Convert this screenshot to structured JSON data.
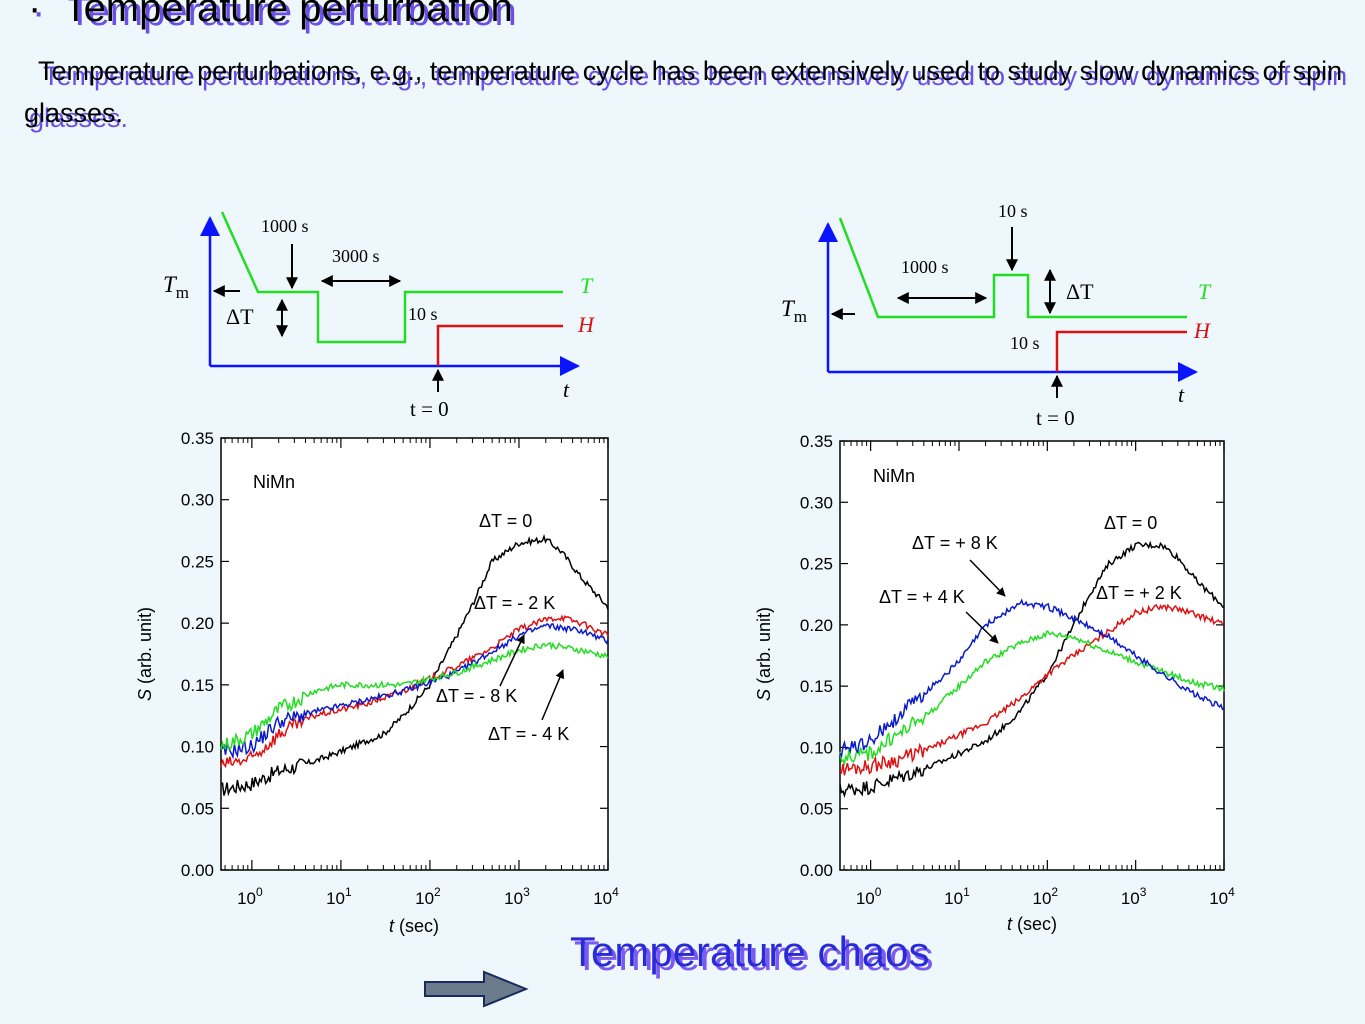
{
  "slide": {
    "title_bullet": "·",
    "title": "Temperature perturbation",
    "intro": "Temperature perturbations, e.g., temperature cycle has been extensively used to study slow dynamics of spin glasses.",
    "conclusion": "Temperature chaos",
    "colors": {
      "green": "#22dd22",
      "red": "#dd1111",
      "blue": "#0a1acc",
      "black": "#000000",
      "axis_blue": "#0a14ff",
      "title_shadow": "#6a4ee6",
      "conclusion": "#2a2ad8"
    }
  },
  "protocols": [
    {
      "labels": {
        "tm": "T",
        "tm_sub": "m",
        "dT": "ΔT",
        "wait1": "1000 s",
        "wait2": "3000 s",
        "field_on": "10 s",
        "t_legend": "T",
        "h_legend": "H",
        "t_axis": "t",
        "t0": "t = 0"
      }
    },
    {
      "labels": {
        "tm": "T",
        "tm_sub": "m",
        "dT": "ΔT",
        "wait1": "1000 s",
        "pulse": "10 s",
        "field_on": "10 s",
        "t_legend": "T",
        "h_legend": "H",
        "t_axis": "t",
        "t0": "t = 0"
      }
    }
  ],
  "chart_data": [
    {
      "type": "line",
      "sample_label": "NiMn",
      "xlabel_italic": "t",
      "xlabel_rest": " (sec)",
      "ylabel_italic": "S",
      "ylabel_rest": " (arb. unit)",
      "x_scale": "log",
      "xlim": [
        0.45,
        10000
      ],
      "ylim": [
        0,
        0.35
      ],
      "xticks": [
        1,
        10,
        100,
        1000,
        10000
      ],
      "xtick_exponents": [
        "0",
        "1",
        "2",
        "3",
        "4"
      ],
      "yticks": [
        "0.00",
        "0.05",
        "0.10",
        "0.15",
        "0.20",
        "0.25",
        "0.30",
        "0.35"
      ],
      "series": [
        {
          "color": "#000000",
          "label": "ΔT = 0",
          "x": [
            0.45,
            1,
            2,
            5,
            10,
            20,
            30,
            50,
            100,
            200,
            300,
            500,
            1000,
            2000,
            3000,
            5000,
            10000
          ],
          "y": [
            0.065,
            0.07,
            0.08,
            0.088,
            0.096,
            0.105,
            0.11,
            0.125,
            0.15,
            0.19,
            0.215,
            0.25,
            0.265,
            0.268,
            0.258,
            0.237,
            0.213
          ]
        },
        {
          "color": "#dd1111",
          "label": "ΔT = - 2 K",
          "x": [
            0.45,
            1,
            2,
            5,
            10,
            20,
            50,
            100,
            200,
            500,
            1000,
            2000,
            3000,
            5000,
            10000
          ],
          "y": [
            0.085,
            0.09,
            0.11,
            0.125,
            0.13,
            0.135,
            0.145,
            0.155,
            0.165,
            0.18,
            0.195,
            0.203,
            0.205,
            0.2,
            0.19
          ]
        },
        {
          "color": "#0a1acc",
          "label": "ΔT = - 8 K",
          "x": [
            0.45,
            1,
            2,
            5,
            10,
            20,
            50,
            100,
            200,
            500,
            1000,
            2000,
            5000,
            10000
          ],
          "y": [
            0.095,
            0.1,
            0.12,
            0.128,
            0.133,
            0.138,
            0.145,
            0.152,
            0.16,
            0.177,
            0.19,
            0.198,
            0.194,
            0.185
          ]
        },
        {
          "color": "#22dd22",
          "label": "ΔT = - 4 K",
          "x": [
            0.45,
            1,
            2,
            5,
            10,
            20,
            50,
            100,
            200,
            500,
            1000,
            2000,
            5000,
            10000
          ],
          "y": [
            0.1,
            0.11,
            0.13,
            0.145,
            0.15,
            0.15,
            0.15,
            0.155,
            0.16,
            0.17,
            0.178,
            0.183,
            0.178,
            0.173
          ]
        }
      ]
    },
    {
      "type": "line",
      "sample_label": "NiMn",
      "xlabel_italic": "t",
      "xlabel_rest": " (sec)",
      "ylabel_italic": "S",
      "ylabel_rest": " (arb. unit)",
      "x_scale": "log",
      "xlim": [
        0.45,
        10000
      ],
      "ylim": [
        0,
        0.35
      ],
      "xticks": [
        1,
        10,
        100,
        1000,
        10000
      ],
      "xtick_exponents": [
        "0",
        "1",
        "2",
        "3",
        "4"
      ],
      "yticks": [
        "0.00",
        "0.05",
        "0.10",
        "0.15",
        "0.20",
        "0.25",
        "0.30",
        "0.35"
      ],
      "series": [
        {
          "color": "#000000",
          "label": "ΔT = 0",
          "x": [
            0.45,
            1,
            2,
            5,
            10,
            20,
            30,
            50,
            100,
            200,
            300,
            500,
            1000,
            2000,
            3000,
            5000,
            10000
          ],
          "y": [
            0.065,
            0.068,
            0.075,
            0.085,
            0.095,
            0.105,
            0.115,
            0.13,
            0.16,
            0.2,
            0.225,
            0.25,
            0.265,
            0.265,
            0.255,
            0.235,
            0.215
          ]
        },
        {
          "color": "#dd1111",
          "label": "ΔT = + 2 K",
          "x": [
            0.45,
            1,
            2,
            5,
            10,
            20,
            50,
            100,
            200,
            500,
            1000,
            2000,
            3000,
            5000,
            10000
          ],
          "y": [
            0.082,
            0.085,
            0.09,
            0.1,
            0.11,
            0.12,
            0.14,
            0.16,
            0.175,
            0.195,
            0.21,
            0.215,
            0.213,
            0.208,
            0.2
          ]
        },
        {
          "color": "#22dd22",
          "label": "ΔT = + 4 K",
          "x": [
            0.45,
            1,
            2,
            5,
            10,
            20,
            50,
            100,
            200,
            500,
            1000,
            2000,
            5000,
            10000
          ],
          "y": [
            0.092,
            0.095,
            0.11,
            0.13,
            0.15,
            0.17,
            0.185,
            0.193,
            0.19,
            0.178,
            0.17,
            0.162,
            0.152,
            0.148
          ]
        },
        {
          "color": "#0a1acc",
          "label": "ΔT = + 8 K",
          "x": [
            0.45,
            1,
            2,
            5,
            10,
            20,
            50,
            100,
            200,
            500,
            1000,
            2000,
            5000,
            10000
          ],
          "y": [
            0.097,
            0.105,
            0.125,
            0.15,
            0.17,
            0.2,
            0.218,
            0.215,
            0.205,
            0.19,
            0.175,
            0.16,
            0.142,
            0.132
          ]
        }
      ]
    }
  ]
}
